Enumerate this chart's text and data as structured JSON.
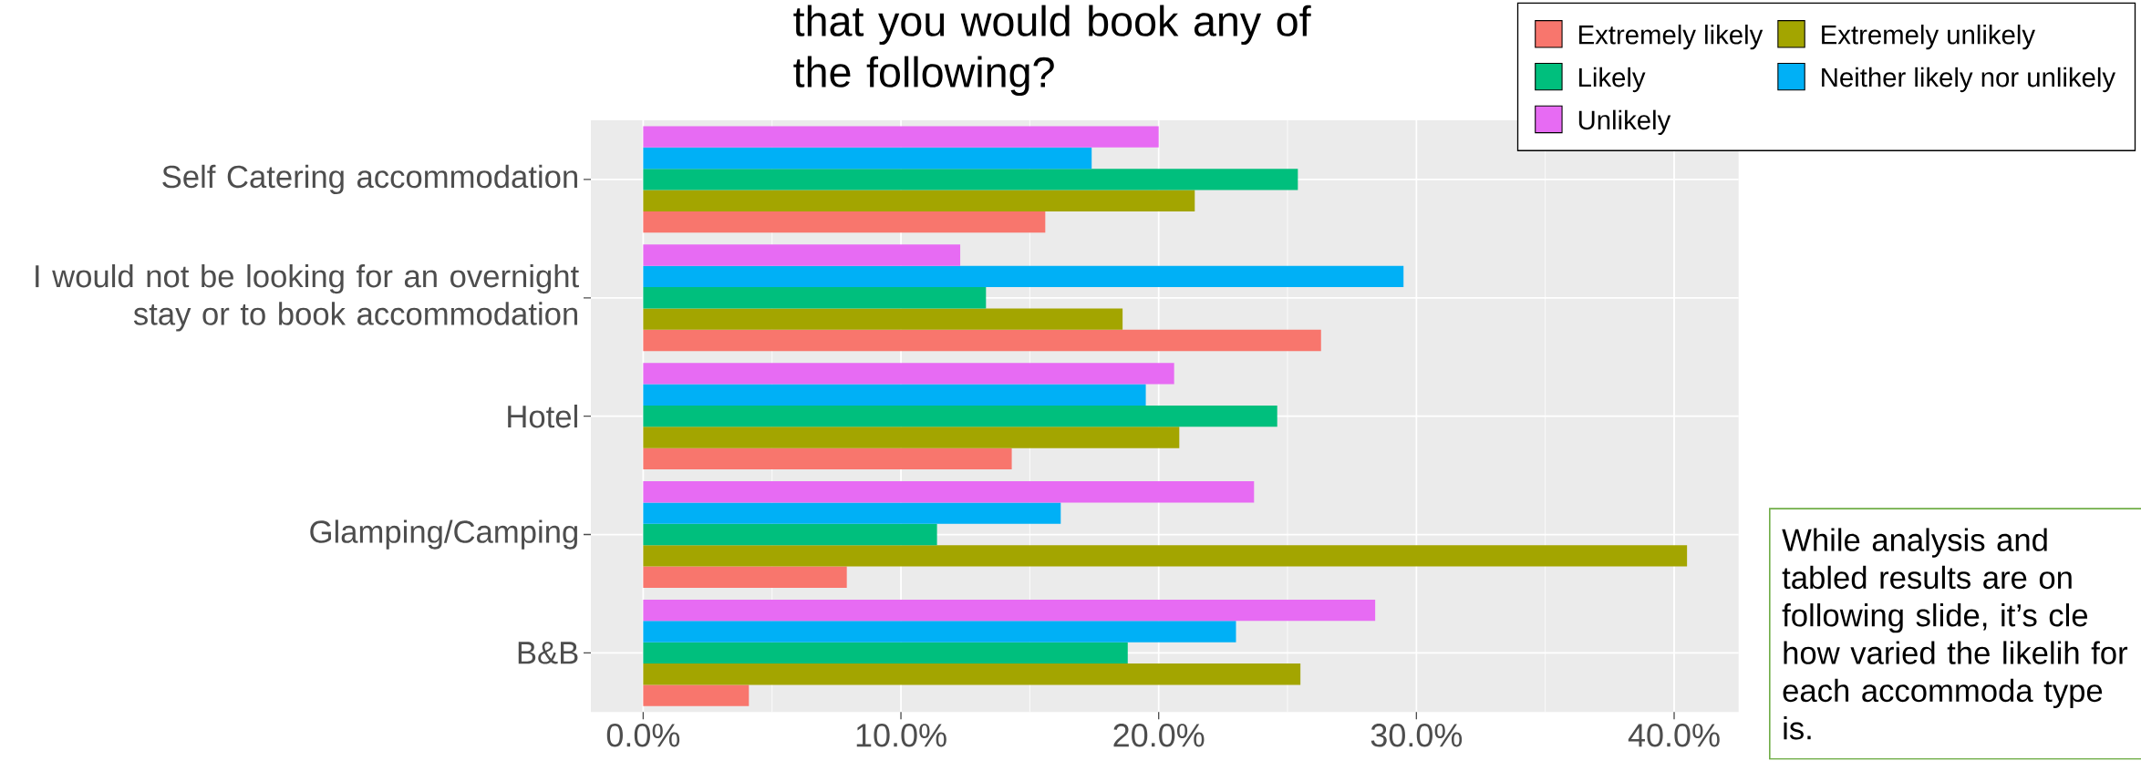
{
  "chart_data": {
    "type": "bar",
    "orientation": "horizontal",
    "title": "that you would book any of the following?",
    "categories": [
      "Self Catering accommodation",
      "I would not be looking for an overnight stay or to book accommodation",
      "Hotel",
      "Glamping/Camping",
      "B&B"
    ],
    "series": [
      {
        "name": "Extremely likely",
        "color": "#f8766d",
        "values": [
          15.6,
          26.3,
          14.3,
          7.9,
          4.1
        ]
      },
      {
        "name": "Extremely unlikely",
        "color": "#a3a500",
        "values": [
          21.4,
          18.6,
          20.8,
          40.5,
          25.5
        ]
      },
      {
        "name": "Likely",
        "color": "#00bf7d",
        "values": [
          25.4,
          13.3,
          24.6,
          11.4,
          18.8
        ]
      },
      {
        "name": "Neither likely nor unlikely",
        "color": "#00b0f6",
        "values": [
          17.4,
          29.5,
          19.5,
          16.2,
          23.0
        ]
      },
      {
        "name": "Unlikely",
        "color": "#e76bf3",
        "values": [
          20.0,
          12.3,
          20.6,
          23.7,
          28.4
        ]
      }
    ],
    "xlim": [
      -2.03,
      42.5
    ],
    "xticks": [
      {
        "value": 0,
        "label": "0.0%"
      },
      {
        "value": 10,
        "label": "10.0%"
      },
      {
        "value": 20,
        "label": "20.0%"
      },
      {
        "value": 30,
        "label": "30.0%"
      },
      {
        "value": 40,
        "label": "40.0%"
      }
    ],
    "grid": true,
    "legend": "top right",
    "annotations": [
      "While analysis and tabled results are on following slide, it’s cle how varied the likelih for each accommoda type is."
    ]
  }
}
